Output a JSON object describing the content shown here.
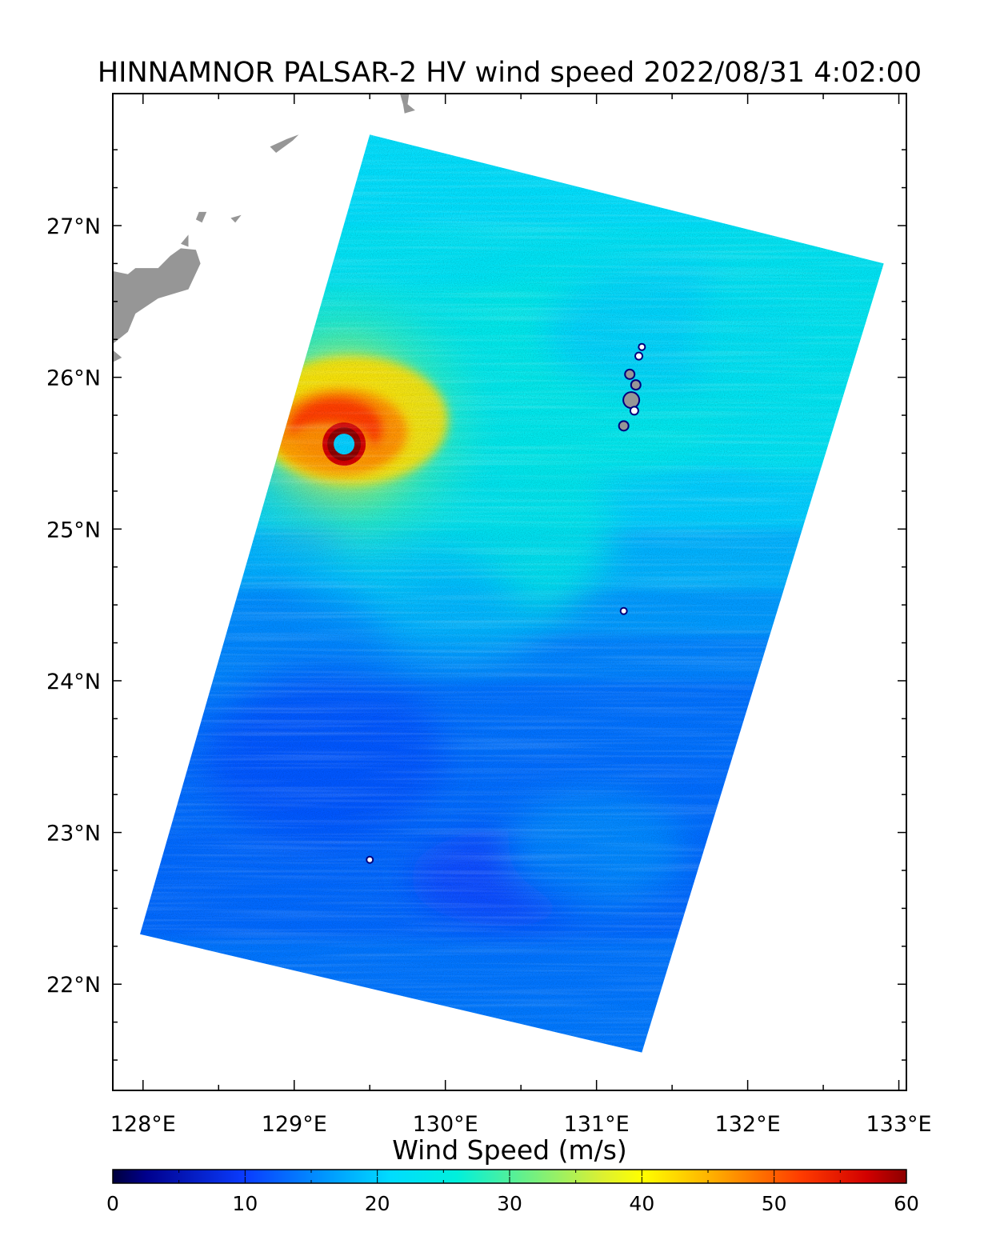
{
  "chart_data": {
    "type": "heatmap",
    "title": "HINNAMNOR  PALSAR-2 HV  wind speed 2022/08/31 4:02:00",
    "x_ticks": [
      "128°E",
      "129°E",
      "130°E",
      "131°E",
      "132°E",
      "133°E"
    ],
    "y_ticks": [
      "22°N",
      "23°N",
      "24°N",
      "25°N",
      "26°N",
      "27°N"
    ],
    "x_range_deg_e": [
      127.8,
      133.05
    ],
    "y_range_deg_n": [
      21.3,
      27.87
    ],
    "land_color": "#969696",
    "swath_corners": [
      {
        "lon": 129.5,
        "lat": 27.6
      },
      {
        "lon": 132.9,
        "lat": 26.75
      },
      {
        "lon": 131.3,
        "lat": 21.55
      },
      {
        "lon": 127.98,
        "lat": 22.33
      }
    ],
    "storm_eye": {
      "lon": 129.33,
      "lat": 25.56,
      "eye_wind": 20,
      "eyewall_max_wind": 60
    },
    "colorbar": {
      "title": "Wind Speed (m/s)",
      "ticks": [
        0,
        10,
        20,
        30,
        40,
        50,
        60
      ],
      "range": [
        0,
        60
      ],
      "stops": [
        {
          "v": 0,
          "c": "#00003c"
        },
        {
          "v": 2.5,
          "c": "#00008c"
        },
        {
          "v": 10,
          "c": "#0a3cff"
        },
        {
          "v": 16,
          "c": "#0096ff"
        },
        {
          "v": 21,
          "c": "#00dcff"
        },
        {
          "v": 26,
          "c": "#00f0dc"
        },
        {
          "v": 31,
          "c": "#64f08c"
        },
        {
          "v": 37,
          "c": "#dcf032"
        },
        {
          "v": 40,
          "c": "#ffff00"
        },
        {
          "v": 45,
          "c": "#ffb400"
        },
        {
          "v": 52,
          "c": "#ff3c00"
        },
        {
          "v": 57,
          "c": "#d20000"
        },
        {
          "v": 60,
          "c": "#8c0000"
        }
      ]
    }
  }
}
